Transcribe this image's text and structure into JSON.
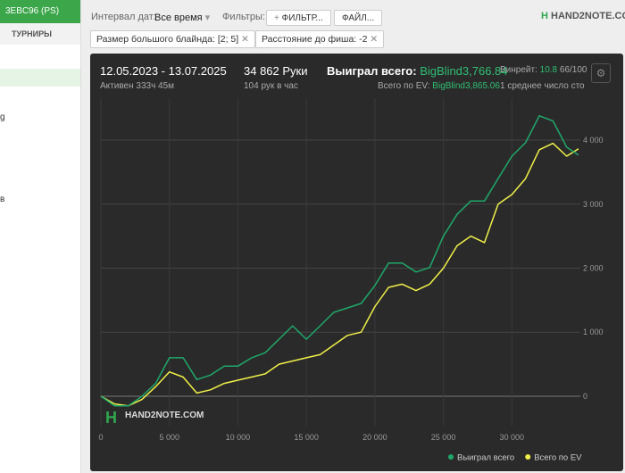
{
  "sidebar": {
    "account": "3EBC96 (PS)",
    "tab": "ТУРНИРЫ",
    "fragments": [
      "g",
      "в"
    ]
  },
  "toolbar": {
    "date_label": "Интервал дат:",
    "date_value": "Все время",
    "filters_label": "Фильтры:",
    "filter_button": "ФИЛЬТР...",
    "file_button": "ФАЙЛ...",
    "logo": "HAND2NOTE.COM",
    "chips": [
      "Размер большого блайнда: [2; 5]",
      "Расстояние до фиша: -2"
    ]
  },
  "stats": {
    "period": "12.05.2023 - 13.07.2025",
    "active": "Активен 333ч 45м",
    "hands": "34 862 Руки",
    "rate": "104 рук в час",
    "won_label": "Выиграл всего:",
    "won_value": "BigBlind3,766.84",
    "ev_label": "Всего по EV:",
    "ev_value": "BigBlind3,865.06",
    "winrate_label": "Винрейт:",
    "winrate_value": "10.8",
    "winrate_unit": "66/100",
    "note": "1 среднее число сто"
  },
  "chart_data": {
    "type": "line",
    "watermark": "HAND2NOTE.COM",
    "x": [
      0,
      1000,
      2000,
      3000,
      4000,
      5000,
      6000,
      7000,
      8000,
      9000,
      10000,
      11000,
      12000,
      13000,
      14000,
      15000,
      16000,
      17000,
      18000,
      19000,
      20000,
      21000,
      22000,
      23000,
      24000,
      25000,
      26000,
      27000,
      28000,
      29000,
      30000,
      31000,
      32000,
      33000,
      34000,
      34862
    ],
    "series": [
      {
        "name": "Выиграл всего",
        "color": "#1fa86a",
        "values": [
          0,
          -150,
          -150,
          0,
          200,
          600,
          600,
          260,
          330,
          470,
          470,
          600,
          680,
          890,
          1100,
          890,
          1100,
          1310,
          1380,
          1450,
          1730,
          2080,
          2080,
          1940,
          2010,
          2500,
          2840,
          3050,
          3050,
          3400,
          3750,
          3960,
          4380,
          4300,
          3890,
          3766.84
        ]
      },
      {
        "name": "Всего по EV",
        "color": "#f0f04a",
        "values": [
          0,
          -120,
          -150,
          -50,
          150,
          380,
          300,
          50,
          100,
          200,
          250,
          300,
          350,
          500,
          550,
          600,
          650,
          800,
          950,
          1000,
          1400,
          1700,
          1750,
          1650,
          1750,
          2000,
          2350,
          2500,
          2400,
          3000,
          3150,
          3400,
          3850,
          3950,
          3750,
          3865.06
        ]
      }
    ],
    "xlim": [
      0,
      35000
    ],
    "xticks": [
      0,
      {
        "value": 5000,
        "label": "5 000"
      },
      {
        "value": 10000,
        "label": "10 000"
      },
      {
        "value": 15000,
        "label": "15 000"
      },
      {
        "value": 20000,
        "label": "20 000"
      },
      {
        "value": 25000,
        "label": "25 000"
      },
      {
        "value": 30000,
        "label": "30 000"
      }
    ],
    "ylim": [
      -470,
      4650
    ],
    "yticks": [
      0,
      {
        "value": 1000,
        "label": "1 000"
      },
      {
        "value": 2000,
        "label": "2 000"
      },
      {
        "value": 3000,
        "label": "3 000"
      },
      {
        "value": 4000,
        "label": "4 000"
      }
    ],
    "grid": true,
    "legend": "bottom-right"
  }
}
